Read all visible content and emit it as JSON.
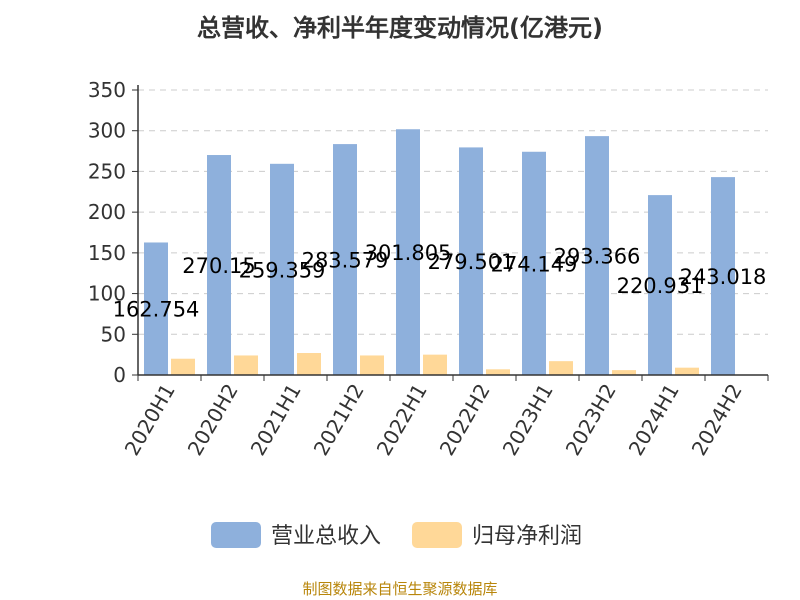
{
  "colors": {
    "revenue": "#8eb0dc",
    "profit": "#ffd898",
    "grid": "#cccccc",
    "axis": "#333333",
    "source": "#b8860b"
  },
  "source_note": "制图数据来自恒生聚源数据库",
  "chart_data": {
    "type": "bar",
    "title": "总营收、净利半年度变动情况(亿港元)",
    "categories": [
      "2020H1",
      "2020H2",
      "2021H1",
      "2021H2",
      "2022H1",
      "2022H2",
      "2023H1",
      "2023H2",
      "2024H1",
      "2024H2"
    ],
    "series": [
      {
        "name": "营业总收入",
        "values": [
          162.754,
          270.15,
          259.359,
          283.579,
          301.805,
          279.501,
          274.149,
          293.366,
          220.931,
          243.018
        ],
        "labels": [
          "162.754",
          "270.15",
          "259.359",
          "283.579",
          "301.805",
          "279.501",
          "274.149",
          "293.366",
          "220.931",
          "243.018"
        ]
      },
      {
        "name": "归母净利润",
        "values": [
          20,
          24,
          27,
          24,
          25,
          7,
          17,
          6,
          9,
          null
        ]
      }
    ],
    "ylim": [
      0,
      350
    ],
    "yticks": [
      0,
      50,
      100,
      150,
      200,
      250,
      300,
      350
    ],
    "grid": true,
    "legend": "bottom"
  }
}
